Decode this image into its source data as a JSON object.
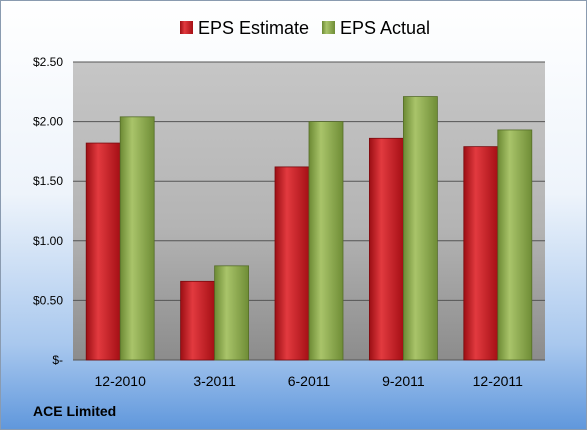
{
  "chart_data": {
    "type": "bar",
    "categories": [
      "12-2010",
      "3-2011",
      "6-2011",
      "9-2011",
      "12-2011"
    ],
    "series": [
      {
        "name": "EPS Estimate",
        "values": [
          1.82,
          0.66,
          1.62,
          1.86,
          1.79
        ],
        "color": "#c8151c"
      },
      {
        "name": "EPS Actual",
        "values": [
          2.04,
          0.79,
          2.0,
          2.21,
          1.93
        ],
        "color": "#8aa84a"
      }
    ],
    "ylim": [
      0,
      2.5
    ],
    "yticks": [
      {
        "value": 0,
        "label": "$-"
      },
      {
        "value": 0.5,
        "label": "$0.50"
      },
      {
        "value": 1.0,
        "label": "$1.00"
      },
      {
        "value": 1.5,
        "label": "$1.50"
      },
      {
        "value": 2.0,
        "label": "$2.00"
      },
      {
        "value": 2.5,
        "label": "$2.50"
      }
    ],
    "grid": true,
    "legend": "top-center",
    "footnote": "ACE Limited"
  }
}
